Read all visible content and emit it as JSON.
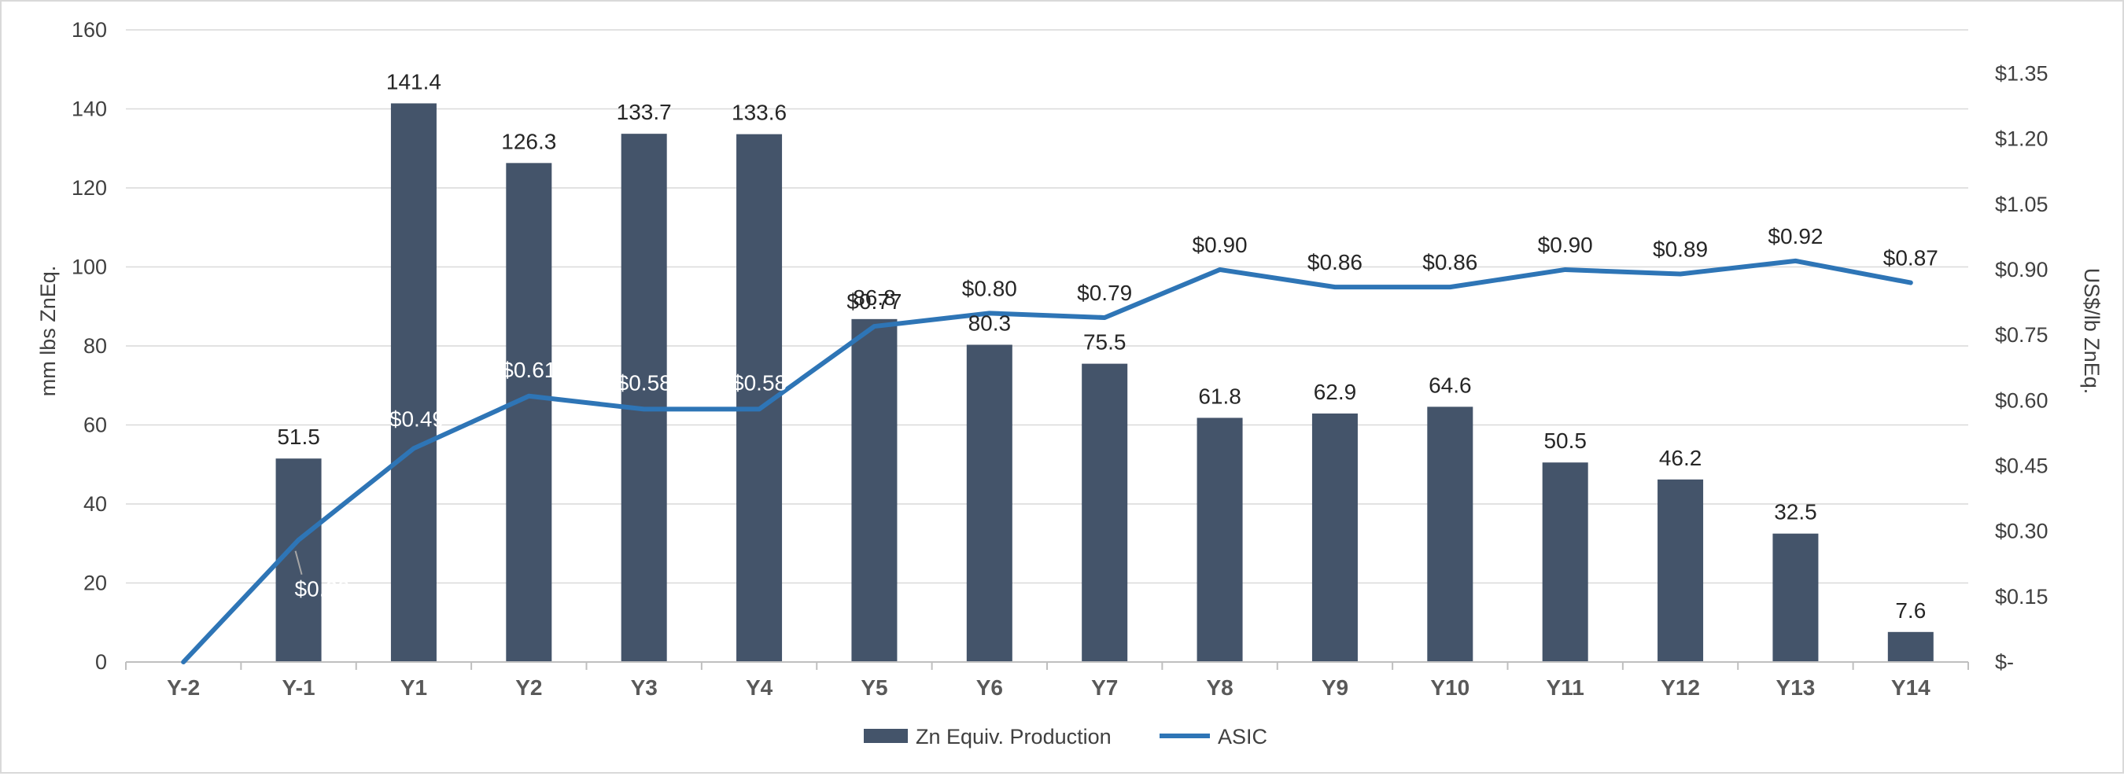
{
  "chart_data": {
    "type": "bar",
    "categories": [
      "Y-2",
      "Y-1",
      "Y1",
      "Y2",
      "Y3",
      "Y4",
      "Y5",
      "Y6",
      "Y7",
      "Y8",
      "Y9",
      "Y10",
      "Y11",
      "Y12",
      "Y13",
      "Y14"
    ],
    "series": [
      {
        "name": "Zn Equiv. Production",
        "type": "bar",
        "axis": "left",
        "color": "#44546a",
        "values": [
          null,
          51.5,
          141.4,
          126.3,
          133.7,
          133.6,
          86.8,
          80.3,
          75.5,
          61.8,
          62.9,
          64.6,
          50.5,
          46.2,
          32.5,
          7.6
        ],
        "labels": [
          "",
          "51.5",
          "141.4",
          "126.3",
          "133.7",
          "133.6",
          "86.8",
          "80.3",
          "75.5",
          "61.8",
          "62.9",
          "64.6",
          "50.5",
          "46.2",
          "32.5",
          "7.6"
        ]
      },
      {
        "name": "ASIC",
        "type": "line",
        "axis": "right",
        "color": "#2e75b6",
        "values": [
          0.0,
          0.28,
          0.49,
          0.61,
          0.58,
          0.58,
          0.77,
          0.8,
          0.79,
          0.9,
          0.86,
          0.86,
          0.9,
          0.89,
          0.92,
          0.87
        ],
        "labels": [
          "",
          "$0.28",
          "$0.49",
          "$0.61",
          "$0.58",
          "$0.58",
          "$0.77",
          "$0.80",
          "$0.79",
          "$0.90",
          "$0.86",
          "$0.86",
          "$0.90",
          "$0.89",
          "$0.92",
          "$0.87"
        ]
      }
    ],
    "ylabel": "mm lbs ZnEq.",
    "y2label": "US$/lb ZnEq.",
    "ylim": [
      0,
      160
    ],
    "y_ticks": [
      0,
      20,
      40,
      60,
      80,
      100,
      120,
      140,
      160
    ],
    "y2lim": [
      0,
      1.45
    ],
    "y2_ticks": [
      0,
      0.15,
      0.3,
      0.45,
      0.6,
      0.75,
      0.9,
      1.05,
      1.2,
      1.35
    ],
    "y2_tick_labels": [
      "$-",
      "$0.15",
      "$0.30",
      "$0.45",
      "$0.60",
      "$0.75",
      "$0.90",
      "$1.05",
      "$1.20",
      "$1.35"
    ],
    "grid": true,
    "legend_position": "bottom"
  }
}
